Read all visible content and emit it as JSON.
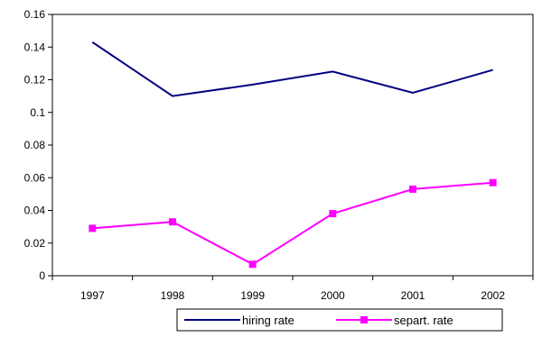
{
  "chart_data": {
    "type": "line",
    "title": "",
    "xlabel": "",
    "ylabel": "",
    "categories": [
      "1997",
      "1998",
      "1999",
      "2000",
      "2001",
      "2002"
    ],
    "y_ticks": [
      "0",
      "0.02",
      "0.04",
      "0.06",
      "0.08",
      "0.1",
      "0.12",
      "0.14",
      "0.16"
    ],
    "ylim": [
      0,
      0.16
    ],
    "grid": false,
    "legend_position": "bottom",
    "series": [
      {
        "name": "hiring rate",
        "values": [
          0.143,
          0.11,
          0.117,
          0.125,
          0.112,
          0.126
        ],
        "color": "#000080",
        "marker": "none"
      },
      {
        "name": "separt. rate",
        "values": [
          0.029,
          0.033,
          0.007,
          0.038,
          0.053,
          0.057
        ],
        "color": "#ff00ff",
        "marker": "square"
      }
    ]
  }
}
